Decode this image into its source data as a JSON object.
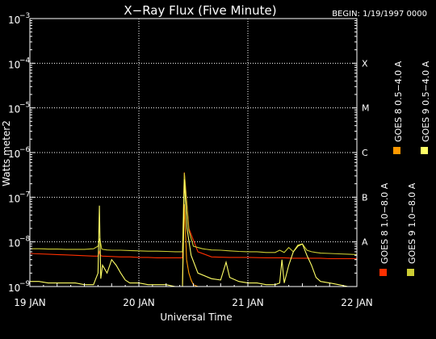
{
  "chart_data": {
    "type": "line",
    "title": "X−Ray Flux (Five Minute)",
    "begin_label": "BEGIN: 1/19/1997 0000",
    "xlabel": "Universal Time",
    "ylabel": "Watts meter2",
    "y_scale": "log",
    "ylim": [
      1e-09,
      0.001
    ],
    "xlim": [
      0,
      72
    ],
    "x_unit": "hours since 19 JAN 1997 00:00 UT",
    "x_ticks": [
      {
        "value": 0,
        "label": "19 JAN"
      },
      {
        "value": 24,
        "label": "20 JAN"
      },
      {
        "value": 48,
        "label": "21 JAN"
      },
      {
        "value": 72,
        "label": "22 JAN"
      }
    ],
    "y_ticks": [
      {
        "value": 1e-09,
        "base": "10",
        "exp": "−9"
      },
      {
        "value": 1e-08,
        "base": "10",
        "exp": "−8"
      },
      {
        "value": 1e-07,
        "base": "10",
        "exp": "−7"
      },
      {
        "value": 1e-06,
        "base": "10",
        "exp": "−6"
      },
      {
        "value": 1e-05,
        "base": "10",
        "exp": "−5"
      },
      {
        "value": 0.0001,
        "base": "10",
        "exp": "−4"
      },
      {
        "value": 0.001,
        "base": "10",
        "exp": "−3"
      }
    ],
    "flare_classes": [
      {
        "label": "A",
        "value": 1e-08
      },
      {
        "label": "B",
        "value": 1e-07
      },
      {
        "label": "C",
        "value": 1e-06
      },
      {
        "label": "M",
        "value": 1e-05
      },
      {
        "label": "X",
        "value": 0.0001
      }
    ],
    "grid": true,
    "legend_placement": "right",
    "series": [
      {
        "name": "GOES 8 1.0−8.0 A",
        "color": "#ff3000",
        "x": [
          0,
          2,
          4,
          6,
          8,
          10,
          12,
          14,
          15,
          15.3,
          15.6,
          16,
          18,
          20,
          22,
          24,
          26,
          28,
          30,
          32,
          33.6,
          34,
          35,
          37,
          40,
          44,
          48,
          52,
          56,
          58,
          60,
          62,
          64,
          66,
          68,
          70,
          72
        ],
        "y": [
          5.5e-09,
          5.4e-09,
          5.3e-09,
          5.2e-09,
          5.1e-09,
          5e-09,
          4.9e-09,
          4.8e-09,
          4.8e-09,
          6e-09,
          4.9e-09,
          4.8e-09,
          4.7e-09,
          4.6e-09,
          4.6e-09,
          4.5e-09,
          4.5e-09,
          4.4e-09,
          4.4e-09,
          4.4e-09,
          4.4e-09,
          3.6e-07,
          2e-08,
          6e-09,
          4.6e-09,
          4.5e-09,
          4.5e-09,
          4.4e-09,
          4.4e-09,
          4.3e-09,
          4.3e-09,
          4.3e-09,
          4.3e-09,
          4.2e-09,
          4.2e-09,
          4.2e-09,
          4.2e-09
        ]
      },
      {
        "name": "GOES 8 0.5−4.0 A",
        "color": "#ff9900",
        "x": [
          33.6,
          34,
          34.5,
          35,
          35.5,
          36,
          37
        ],
        "y": [
          1e-09,
          7e-08,
          4e-09,
          2e-09,
          1.4e-09,
          1.1e-09,
          1e-09
        ]
      },
      {
        "name": "GOES 9 1.0−8.0 A",
        "color": "#cccc33",
        "x": [
          0,
          2,
          4,
          6,
          8,
          10,
          12,
          14,
          15,
          15.4,
          15.8,
          16,
          17,
          18,
          20,
          22,
          24,
          26,
          28,
          30,
          32,
          33.6,
          34,
          35,
          36,
          38,
          40,
          42,
          44,
          46,
          48,
          50,
          52,
          54,
          55,
          56,
          57,
          58,
          59,
          60,
          61,
          62,
          63,
          64,
          66,
          68,
          70,
          72
        ],
        "y": [
          7e-09,
          7e-09,
          6.9e-09,
          6.9e-09,
          6.8e-09,
          6.8e-09,
          6.8e-09,
          7e-09,
          8e-09,
          1.2e-08,
          7e-09,
          6.8e-09,
          6.6e-09,
          6.5e-09,
          6.5e-09,
          6.4e-09,
          6.3e-09,
          6.2e-09,
          6.2e-09,
          6.1e-09,
          6e-09,
          6e-09,
          3.5e-07,
          1.8e-08,
          8e-09,
          7e-09,
          6.6e-09,
          6.5e-09,
          6.3e-09,
          6.1e-09,
          6e-09,
          6e-09,
          5.8e-09,
          5.8e-09,
          6.5e-09,
          5.8e-09,
          7.5e-09,
          6e-09,
          8.5e-09,
          9e-09,
          6.5e-09,
          6e-09,
          5.8e-09,
          5.6e-09,
          5.5e-09,
          5.4e-09,
          5.3e-09,
          5.2e-09
        ]
      },
      {
        "name": "GOES 9 0.5−4.0 A",
        "color": "#ffff66",
        "x": [
          0,
          2,
          4,
          6,
          8,
          10,
          12,
          14,
          15,
          15.3,
          15.6,
          16,
          17,
          18,
          19,
          20,
          21,
          22,
          24,
          26,
          28,
          30,
          32,
          33.6,
          34,
          34.6,
          35.5,
          37,
          40,
          42,
          43.2,
          44,
          46,
          48,
          50,
          52,
          54,
          55,
          55.5,
          56,
          57,
          58,
          59,
          60,
          61,
          62,
          63,
          64,
          66,
          68,
          70,
          72
        ],
        "y": [
          1.3e-09,
          1.3e-09,
          1.2e-09,
          1.2e-09,
          1.2e-09,
          1.2e-09,
          1.1e-09,
          1.1e-09,
          2e-09,
          6.5e-08,
          1.5e-09,
          3e-09,
          2e-09,
          4e-09,
          3e-09,
          2e-09,
          1.4e-09,
          1.2e-09,
          1.2e-09,
          1.1e-09,
          1.1e-09,
          1.1e-09,
          1e-09,
          1e-09,
          2.5e-07,
          2e-08,
          5e-09,
          2e-09,
          1.5e-09,
          1.4e-09,
          3.5e-09,
          1.6e-09,
          1.3e-09,
          1.2e-09,
          1.2e-09,
          1.1e-09,
          1.1e-09,
          1.2e-09,
          4e-09,
          1.2e-09,
          3e-09,
          6e-09,
          8e-09,
          9e-09,
          5e-09,
          3e-09,
          1.6e-09,
          1.3e-09,
          1.2e-09,
          1.1e-09,
          1e-09,
          1e-09
        ]
      }
    ]
  }
}
